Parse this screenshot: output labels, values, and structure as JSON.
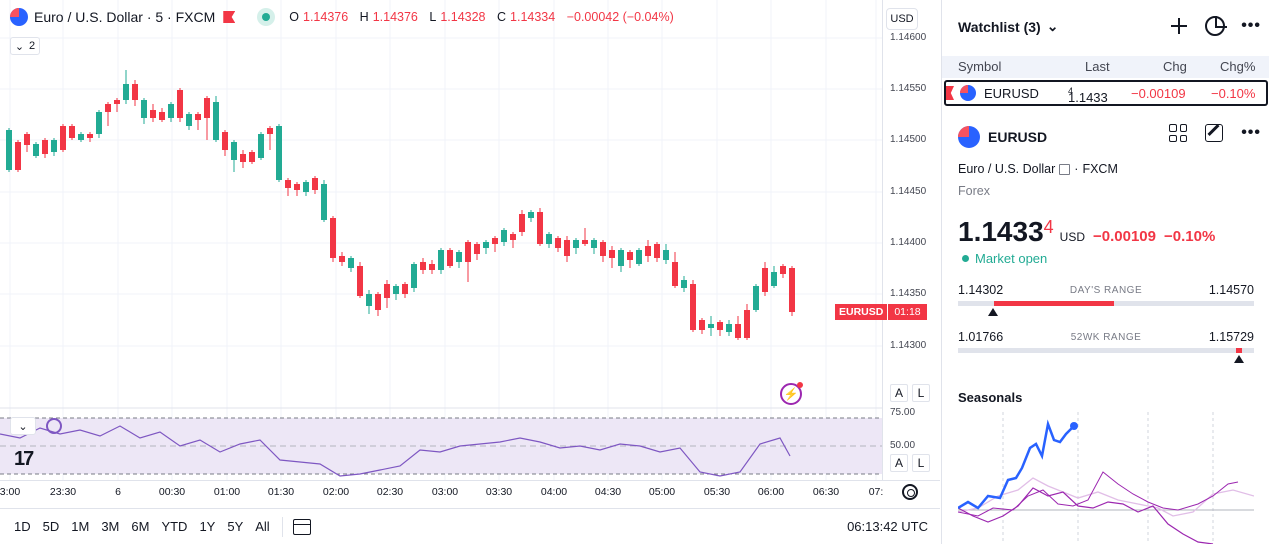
{
  "chart": {
    "symbol_title": "Euro / U.S. Dollar · 5 · FXCM",
    "ohlc": {
      "open_label": "O",
      "open": "1.14376",
      "high_label": "H",
      "high": "1.14376",
      "low_label": "L",
      "low": "1.14328",
      "close_label": "C",
      "close": "1.14334",
      "change": "−0.00042 (−0.04%)"
    },
    "collapse_count": "2",
    "currency": "USD",
    "price_ticks": [
      "1.14600",
      "1.14550",
      "1.14500",
      "1.14450",
      "1.14400",
      "1.14350",
      "1.14300"
    ],
    "rsi_ticks": [
      "75.00",
      "50.00"
    ],
    "current_price_tag": {
      "symbol": "EURUSD",
      "countdown": "01:18"
    },
    "scale_buttons": {
      "auto": "A",
      "log": "L"
    },
    "time_ticks": [
      "3:00",
      "23:30",
      "6",
      "00:30",
      "01:00",
      "01:30",
      "02:00",
      "02:30",
      "03:00",
      "03:30",
      "04:00",
      "04:30",
      "05:00",
      "05:30",
      "06:00",
      "06:30",
      "07:"
    ],
    "logo_text": "17",
    "colors": {
      "up": "#22ab94",
      "down": "#f23645",
      "rsi": "#7e57c2",
      "rsi_band": "#ede7f6"
    }
  },
  "bottom_bar": {
    "ranges": [
      "1D",
      "5D",
      "1M",
      "3M",
      "6M",
      "YTD",
      "1Y",
      "5Y",
      "All"
    ],
    "clock": "06:13:42 UTC"
  },
  "watchlist": {
    "title": "Watchlist (3)",
    "columns": [
      "Symbol",
      "Last",
      "Chg",
      "Chg%"
    ],
    "rows": [
      {
        "symbol": "EURUSD",
        "last": "1.1433",
        "last_sup": "4",
        "chg": "−0.00109",
        "chg_pct": "−0.10%"
      }
    ]
  },
  "details": {
    "symbol": "EURUSD",
    "description": "Euro / U.S. Dollar",
    "exchange": "FXCM",
    "type": "Forex",
    "price": "1.1433",
    "price_sup": "4",
    "currency": "USD",
    "change": "−0.00109",
    "change_pct": "−0.10%",
    "market_status": "Market open",
    "days_range": {
      "label": "DAY'S RANGE",
      "low": "1.14302",
      "high": "1.14570",
      "position": 0.12
    },
    "wk52_range": {
      "label": "52WK RANGE",
      "low": "1.01766",
      "high": "1.15729",
      "position": 0.95
    },
    "seasonals_title": "Seasonals"
  }
}
